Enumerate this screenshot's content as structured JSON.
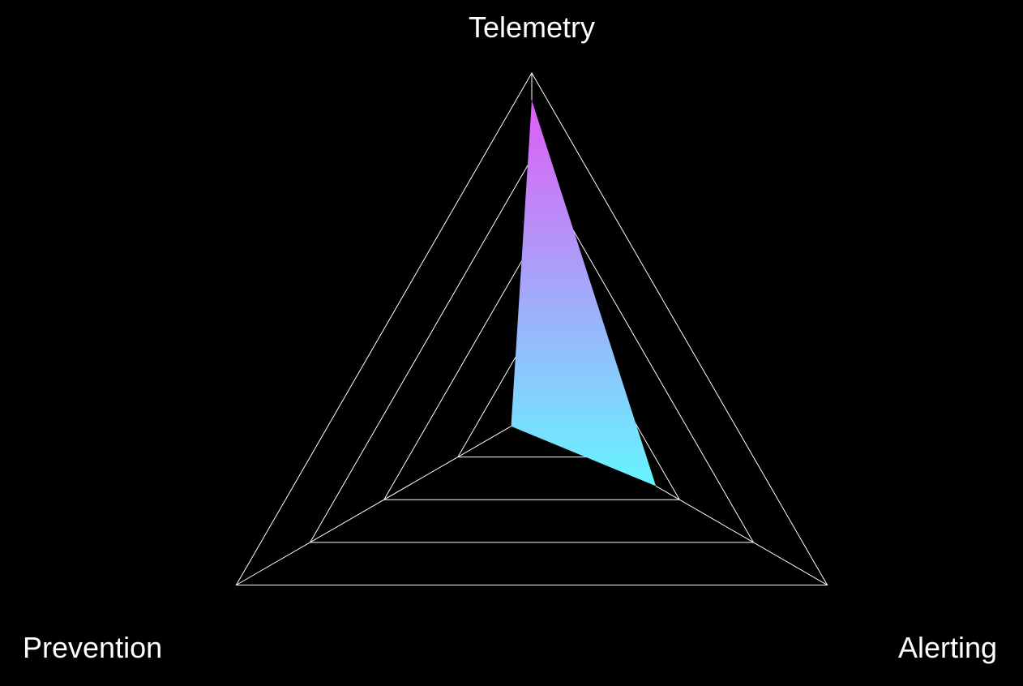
{
  "chart_data": {
    "type": "radar",
    "axes": [
      "Telemetry",
      "Alerting",
      "Prevention"
    ],
    "series": [
      {
        "values": [
          0.92,
          0.42,
          0.07
        ],
        "gradient": [
          "#e05cf5",
          "#66f5ff"
        ]
      }
    ],
    "rlim": [
      0,
      1
    ],
    "grid_levels": [
      0.25,
      0.5,
      0.75,
      1.0
    ],
    "grid": true,
    "background": "#000000",
    "grid_color": "#ffffff",
    "label_color": "#ffffff"
  }
}
